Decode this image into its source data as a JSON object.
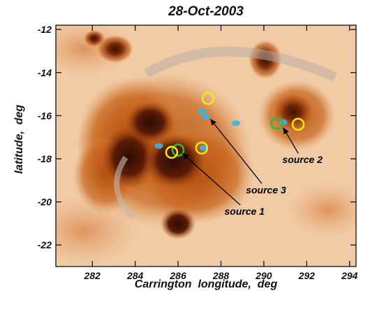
{
  "chart_data": {
    "type": "scatter",
    "title": "28-Oct-2003",
    "xlabel": "Carrington  longitude,  deg",
    "ylabel": "latitude,  deg",
    "xlim": [
      280.3,
      294.3
    ],
    "ylim": [
      -23.0,
      -11.8
    ],
    "x_ticks": [
      282,
      284,
      286,
      288,
      290,
      292,
      294
    ],
    "y_ticks": [
      -12,
      -14,
      -16,
      -18,
      -20,
      -22
    ],
    "grid": false,
    "legend": "none",
    "yellow_circles": [
      {
        "x": 287.4,
        "y": -15.2
      },
      {
        "x": 285.7,
        "y": -17.7
      },
      {
        "x": 287.1,
        "y": -17.5
      },
      {
        "x": 291.6,
        "y": -16.4
      }
    ],
    "green_circles": [
      {
        "x": 286.0,
        "y": -17.6
      },
      {
        "x": 290.6,
        "y": -16.35
      }
    ],
    "cyan_blobs": [
      {
        "x": 287.1,
        "y": -15.8
      },
      {
        "x": 287.3,
        "y": -16.05
      },
      {
        "x": 288.7,
        "y": -16.35
      },
      {
        "x": 285.1,
        "y": -17.4
      },
      {
        "x": 287.2,
        "y": -17.5
      },
      {
        "x": 290.9,
        "y": -16.3
      }
    ],
    "annotations": [
      {
        "text": "source 2",
        "text_x": 291.8,
        "text_y": -18.2,
        "arrow_to_x": 290.9,
        "arrow_to_y": -16.55
      },
      {
        "text": "source 3",
        "text_x": 290.1,
        "text_y": -19.6,
        "arrow_to_x": 287.5,
        "arrow_to_y": -16.15
      },
      {
        "text": "source 1",
        "text_x": 289.1,
        "text_y": -20.6,
        "arrow_to_x": 286.2,
        "arrow_to_y": -17.75
      }
    ]
  },
  "colors": {
    "background_map": "#f1cba5",
    "umbra": "#3a1206",
    "penumbra": "#a9470f",
    "plage": "#c9651f",
    "yellow_marker": "#f4ea18",
    "green_marker": "#2fc025",
    "cyan_marker": "#38b4ea",
    "arrow": "#000000"
  }
}
